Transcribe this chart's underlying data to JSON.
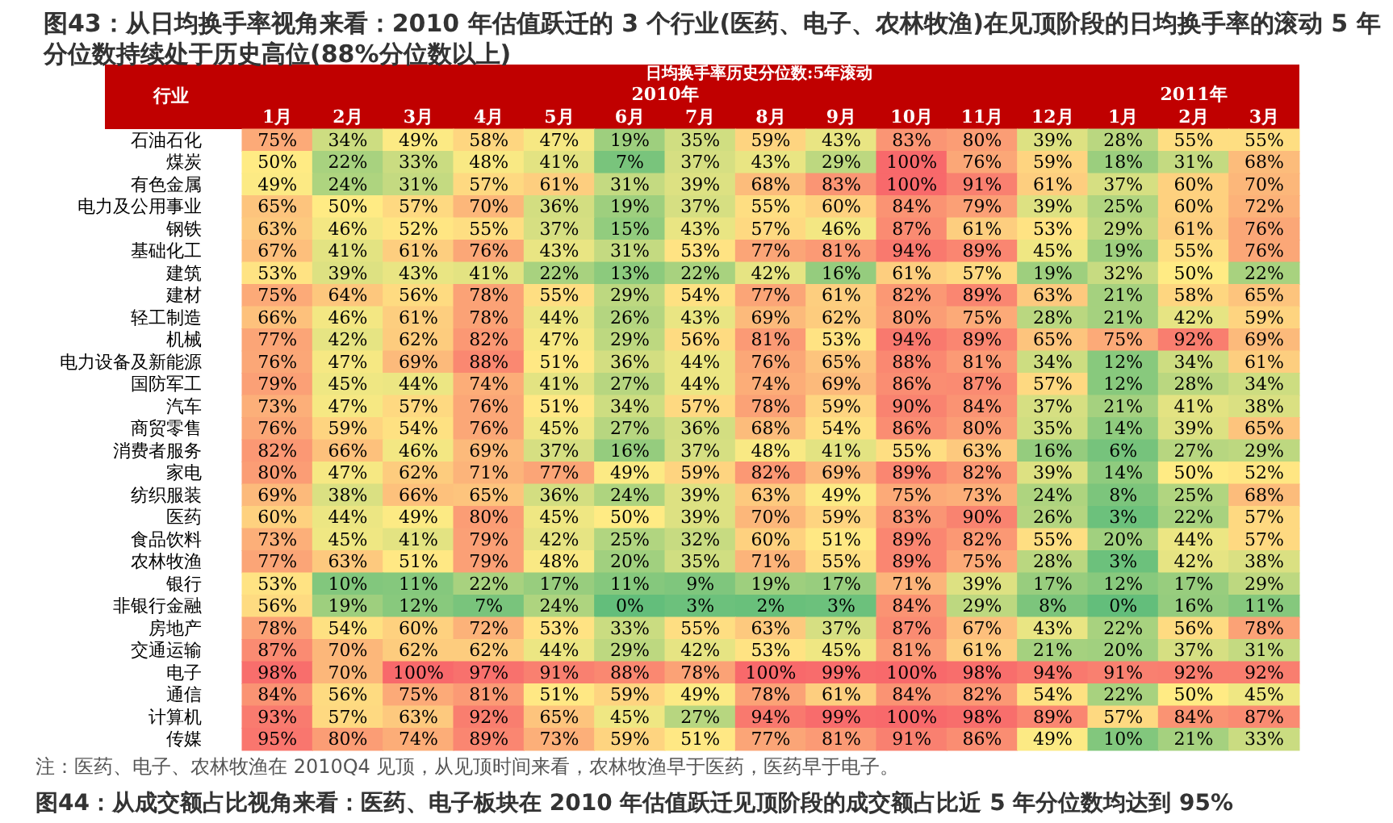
{
  "chart_data": {
    "type": "heatmap",
    "title": "图43：从日均换手率视角来看：2010 年估值跃迁的 3 个行业(医药、电子、农林牧渔)在见顶阶段的日均换手率的滚动 5 年分位数持续处于历史高位(88%分位数以上)",
    "subtitle": "日均换手率历史分位数:5年滚动",
    "ylabel": "行业",
    "annotations": [
      "2010年",
      "2011年",
      "注：医药、电子、农林牧渔在 2010Q4 见顶，从见顶时间来看，农林牧渔早于医药，医药早于电子。",
      "图44：从成交额占比视角来看：医药、电子板块在 2010 年估值跃迁见顶阶段的成交额占比近 5 年分位数均达到 95%"
    ],
    "categories": [
      "1月",
      "2月",
      "3月",
      "4月",
      "5月",
      "6月",
      "7月",
      "8月",
      "9月",
      "10月",
      "11月",
      "12月",
      "1月",
      "2月",
      "3月"
    ],
    "y_categories": [
      "石油石化",
      "煤炭",
      "有色金属",
      "电力及公用事业",
      "钢铁",
      "基础化工",
      "建筑",
      "建材",
      "轻工制造",
      "机械",
      "电力设备及新能源",
      "国防军工",
      "汽车",
      "商贸零售",
      "消费者服务",
      "家电",
      "纺织服装",
      "医药",
      "食品饮料",
      "农林牧渔",
      "银行",
      "非银行金融",
      "房地产",
      "交通运输",
      "电子",
      "通信",
      "计算机",
      "传媒"
    ],
    "colors": [
      "#63be7b",
      "#ffeb84",
      "#f8696b"
    ],
    "cell_labels": [
      [
        "75%",
        "34%",
        "49%",
        "58%",
        "47%",
        "19%",
        "35%",
        "59%",
        "43%",
        "83%",
        "80%",
        "39%",
        "28%",
        "55%",
        "55%"
      ],
      [
        "50%",
        "22%",
        "33%",
        "48%",
        "41%",
        "7%",
        "37%",
        "43%",
        "29%",
        "100%",
        "76%",
        "59%",
        "18%",
        "31%",
        "68%"
      ],
      [
        "49%",
        "24%",
        "31%",
        "57%",
        "61%",
        "31%",
        "39%",
        "68%",
        "83%",
        "100%",
        "91%",
        "61%",
        "37%",
        "60%",
        "70%"
      ],
      [
        "65%",
        "50%",
        "57%",
        "70%",
        "36%",
        "19%",
        "37%",
        "55%",
        "60%",
        "84%",
        "79%",
        "39%",
        "25%",
        "60%",
        "72%"
      ],
      [
        "63%",
        "46%",
        "52%",
        "55%",
        "37%",
        "15%",
        "43%",
        "57%",
        "46%",
        "87%",
        "61%",
        "53%",
        "29%",
        "61%",
        "76%"
      ],
      [
        "67%",
        "41%",
        "61%",
        "76%",
        "43%",
        "31%",
        "53%",
        "77%",
        "81%",
        "94%",
        "89%",
        "45%",
        "19%",
        "55%",
        "76%"
      ],
      [
        "53%",
        "39%",
        "43%",
        "41%",
        "22%",
        "13%",
        "22%",
        "42%",
        "16%",
        "61%",
        "57%",
        "19%",
        "32%",
        "50%",
        "22%"
      ],
      [
        "75%",
        "64%",
        "56%",
        "78%",
        "55%",
        "29%",
        "54%",
        "77%",
        "61%",
        "82%",
        "89%",
        "63%",
        "21%",
        "58%",
        "65%"
      ],
      [
        "66%",
        "46%",
        "61%",
        "78%",
        "44%",
        "26%",
        "43%",
        "69%",
        "62%",
        "80%",
        "75%",
        "28%",
        "21%",
        "42%",
        "59%"
      ],
      [
        "77%",
        "42%",
        "62%",
        "82%",
        "47%",
        "29%",
        "56%",
        "81%",
        "53%",
        "94%",
        "89%",
        "65%",
        "75%",
        "92%",
        "69%"
      ],
      [
        "76%",
        "47%",
        "69%",
        "88%",
        "51%",
        "36%",
        "44%",
        "76%",
        "65%",
        "88%",
        "81%",
        "34%",
        "12%",
        "34%",
        "61%"
      ],
      [
        "79%",
        "45%",
        "44%",
        "74%",
        "41%",
        "27%",
        "44%",
        "74%",
        "69%",
        "86%",
        "87%",
        "57%",
        "12%",
        "28%",
        "34%"
      ],
      [
        "73%",
        "47%",
        "57%",
        "76%",
        "51%",
        "34%",
        "57%",
        "78%",
        "59%",
        "90%",
        "84%",
        "37%",
        "21%",
        "41%",
        "38%"
      ],
      [
        "76%",
        "59%",
        "54%",
        "76%",
        "45%",
        "27%",
        "36%",
        "68%",
        "54%",
        "86%",
        "80%",
        "35%",
        "14%",
        "39%",
        "65%"
      ],
      [
        "82%",
        "66%",
        "46%",
        "69%",
        "37%",
        "16%",
        "37%",
        "48%",
        "41%",
        "55%",
        "63%",
        "16%",
        "6%",
        "27%",
        "29%"
      ],
      [
        "80%",
        "47%",
        "62%",
        "71%",
        "77%",
        "49%",
        "59%",
        "82%",
        "69%",
        "89%",
        "82%",
        "39%",
        "14%",
        "50%",
        "52%"
      ],
      [
        "69%",
        "38%",
        "66%",
        "65%",
        "36%",
        "24%",
        "39%",
        "63%",
        "49%",
        "75%",
        "73%",
        "24%",
        "8%",
        "25%",
        "68%"
      ],
      [
        "60%",
        "44%",
        "49%",
        "80%",
        "45%",
        "50%",
        "39%",
        "70%",
        "59%",
        "83%",
        "90%",
        "26%",
        "3%",
        "22%",
        "57%"
      ],
      [
        "73%",
        "45%",
        "41%",
        "79%",
        "42%",
        "25%",
        "32%",
        "60%",
        "51%",
        "89%",
        "82%",
        "55%",
        "20%",
        "44%",
        "57%"
      ],
      [
        "77%",
        "63%",
        "51%",
        "79%",
        "48%",
        "20%",
        "35%",
        "71%",
        "55%",
        "89%",
        "75%",
        "28%",
        "3%",
        "42%",
        "38%"
      ],
      [
        "53%",
        "10%",
        "11%",
        "22%",
        "17%",
        "11%",
        "9%",
        "19%",
        "17%",
        "71%",
        "39%",
        "17%",
        "12%",
        "17%",
        "29%"
      ],
      [
        "56%",
        "19%",
        "12%",
        "7%",
        "24%",
        "0%",
        "3%",
        "2%",
        "3%",
        "84%",
        "29%",
        "8%",
        "0%",
        "16%",
        "11%"
      ],
      [
        "78%",
        "54%",
        "60%",
        "72%",
        "53%",
        "33%",
        "55%",
        "63%",
        "37%",
        "87%",
        "67%",
        "43%",
        "22%",
        "56%",
        "78%"
      ],
      [
        "87%",
        "70%",
        "62%",
        "62%",
        "44%",
        "29%",
        "42%",
        "53%",
        "45%",
        "81%",
        "61%",
        "21%",
        "20%",
        "37%",
        "31%"
      ],
      [
        "98%",
        "70%",
        "100%",
        "97%",
        "91%",
        "88%",
        "78%",
        "100%",
        "99%",
        "100%",
        "98%",
        "94%",
        "91%",
        "92%",
        "92%"
      ],
      [
        "84%",
        "56%",
        "75%",
        "81%",
        "51%",
        "59%",
        "49%",
        "78%",
        "61%",
        "84%",
        "82%",
        "54%",
        "22%",
        "50%",
        "45%"
      ],
      [
        "93%",
        "57%",
        "63%",
        "92%",
        "65%",
        "45%",
        "27%",
        "94%",
        "99%",
        "100%",
        "98%",
        "89%",
        "57%",
        "84%",
        "87%"
      ],
      [
        "95%",
        "80%",
        "74%",
        "89%",
        "73%",
        "59%",
        "51%",
        "77%",
        "81%",
        "91%",
        "86%",
        "49%",
        "10%",
        "21%",
        "33%"
      ]
    ],
    "cells": [
      [
        75,
        34,
        49,
        58,
        47,
        19,
        35,
        59,
        43,
        83,
        80,
        39,
        28,
        55,
        55
      ],
      [
        50,
        22,
        33,
        48,
        41,
        7,
        37,
        43,
        29,
        100,
        76,
        59,
        18,
        31,
        68
      ],
      [
        49,
        24,
        31,
        57,
        61,
        31,
        39,
        68,
        83,
        100,
        91,
        61,
        37,
        60,
        70
      ],
      [
        65,
        50,
        57,
        70,
        36,
        19,
        37,
        55,
        60,
        84,
        79,
        39,
        25,
        60,
        72
      ],
      [
        63,
        46,
        52,
        55,
        37,
        15,
        43,
        57,
        46,
        87,
        61,
        53,
        29,
        61,
        76
      ],
      [
        67,
        41,
        61,
        76,
        43,
        31,
        53,
        77,
        81,
        94,
        89,
        45,
        19,
        55,
        76
      ],
      [
        53,
        39,
        43,
        41,
        22,
        13,
        22,
        42,
        16,
        61,
        57,
        19,
        32,
        50,
        22
      ],
      [
        75,
        64,
        56,
        78,
        55,
        29,
        54,
        77,
        61,
        82,
        89,
        63,
        21,
        58,
        65
      ],
      [
        66,
        46,
        61,
        78,
        44,
        26,
        43,
        69,
        62,
        80,
        75,
        28,
        21,
        42,
        59
      ],
      [
        77,
        42,
        62,
        82,
        47,
        29,
        56,
        81,
        53,
        94,
        89,
        65,
        75,
        92,
        69
      ],
      [
        76,
        47,
        69,
        88,
        51,
        36,
        44,
        76,
        65,
        88,
        81,
        34,
        12,
        34,
        61
      ],
      [
        79,
        45,
        44,
        74,
        41,
        27,
        44,
        74,
        69,
        86,
        87,
        57,
        12,
        28,
        34
      ],
      [
        73,
        47,
        57,
        76,
        51,
        34,
        57,
        78,
        59,
        90,
        84,
        37,
        21,
        41,
        38
      ],
      [
        76,
        59,
        54,
        76,
        45,
        27,
        36,
        68,
        54,
        86,
        80,
        35,
        14,
        39,
        65
      ],
      [
        82,
        66,
        46,
        69,
        37,
        16,
        37,
        48,
        41,
        55,
        63,
        16,
        6,
        27,
        29
      ],
      [
        80,
        47,
        62,
        71,
        77,
        49,
        59,
        82,
        69,
        89,
        82,
        39,
        14,
        50,
        52
      ],
      [
        69,
        38,
        66,
        65,
        36,
        24,
        39,
        63,
        49,
        75,
        73,
        24,
        8,
        25,
        68
      ],
      [
        60,
        44,
        49,
        80,
        45,
        50,
        39,
        70,
        59,
        83,
        90,
        26,
        3,
        22,
        57
      ],
      [
        73,
        45,
        41,
        79,
        42,
        25,
        32,
        60,
        51,
        89,
        82,
        55,
        20,
        44,
        57
      ],
      [
        77,
        63,
        51,
        79,
        48,
        20,
        35,
        71,
        55,
        89,
        75,
        28,
        3,
        42,
        38
      ],
      [
        53,
        10,
        11,
        22,
        17,
        11,
        9,
        19,
        17,
        71,
        39,
        17,
        12,
        17,
        29
      ],
      [
        56,
        19,
        12,
        7,
        24,
        0,
        3,
        2,
        3,
        84,
        29,
        8,
        0,
        16,
        11
      ],
      [
        78,
        54,
        60,
        72,
        53,
        33,
        55,
        63,
        37,
        87,
        67,
        43,
        22,
        56,
        78
      ],
      [
        87,
        70,
        62,
        62,
        44,
        29,
        42,
        53,
        45,
        81,
        61,
        21,
        20,
        37,
        31
      ],
      [
        98,
        70,
        100,
        97,
        91,
        88,
        78,
        100,
        99,
        100,
        98,
        94,
        91,
        92,
        92
      ],
      [
        84,
        56,
        75,
        81,
        51,
        59,
        49,
        78,
        61,
        84,
        82,
        54,
        22,
        50,
        45
      ],
      [
        93,
        57,
        63,
        92,
        65,
        45,
        27,
        94,
        99,
        100,
        98,
        89,
        57,
        84,
        87
      ],
      [
        95,
        80,
        74,
        89,
        73,
        59,
        51,
        77,
        81,
        91,
        86,
        49,
        10,
        21,
        33
      ]
    ]
  }
}
